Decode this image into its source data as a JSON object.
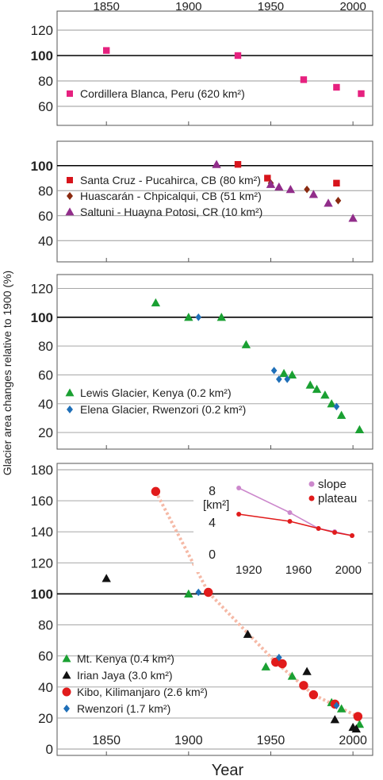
{
  "chart_data": {
    "type": "scatter",
    "xlabel": "Year",
    "ylabel": "Glacier area changes relative to 1900 (%)",
    "x_ticks": [
      "1850",
      "1900",
      "1950",
      "2000"
    ],
    "xlim": [
      1820,
      2012
    ],
    "panels": [
      {
        "ylim": [
          50,
          125
        ],
        "yticks": [
          "60",
          "80",
          "100",
          "120"
        ],
        "series": [
          {
            "name": "Cordillera Blanca, Peru (620 km²)",
            "marker": "square",
            "color": "#e6217f",
            "points": [
              [
                1850,
                104
              ],
              [
                1930,
                100
              ],
              [
                1970,
                81
              ],
              [
                1990,
                75
              ],
              [
                2005,
                70
              ]
            ]
          }
        ]
      },
      {
        "ylim": [
          30,
          110
        ],
        "yticks": [
          "40",
          "60",
          "80",
          "100"
        ],
        "series": [
          {
            "name": "Santa Cruz - Pucahirca, CB (80 km²)",
            "marker": "square",
            "color": "#d7141b",
            "points": [
              [
                1930,
                101
              ],
              [
                1948,
                90
              ],
              [
                1990,
                86
              ]
            ]
          },
          {
            "name": "Huascarán - Chpicalqui, CB (51 km²)",
            "marker": "diamond",
            "color": "#8a2a10",
            "points": [
              [
                1950,
                86
              ],
              [
                1972,
                81
              ],
              [
                1991,
                72
              ]
            ]
          },
          {
            "name": "Saltuni - Huayna Potosi, CR (10 km²)",
            "marker": "triangle",
            "color": "#912d8a",
            "points": [
              [
                1917,
                101
              ],
              [
                1950,
                85
              ],
              [
                1955,
                83
              ],
              [
                1962,
                81
              ],
              [
                1976,
                77
              ],
              [
                1985,
                70
              ],
              [
                2000,
                58
              ]
            ]
          }
        ]
      },
      {
        "ylim": [
          14,
          123
        ],
        "yticks": [
          "20",
          "40",
          "60",
          "80",
          "100",
          "120"
        ],
        "series": [
          {
            "name": "Lewis Glacier, Kenya (0.2 km²)",
            "marker": "triangle",
            "color": "#1aa032",
            "points": [
              [
                1880,
                110
              ],
              [
                1900,
                100
              ],
              [
                1920,
                100
              ],
              [
                1935,
                81
              ],
              [
                1958,
                61
              ],
              [
                1963,
                60
              ],
              [
                1974,
                53
              ],
              [
                1978,
                50
              ],
              [
                1983,
                46
              ],
              [
                1987,
                40
              ],
              [
                1993,
                32
              ],
              [
                2004,
                22
              ]
            ]
          },
          {
            "name": "Elena Glacier, Rwenzori (0.2 km²)",
            "marker": "diamond",
            "color": "#1f6fb8",
            "points": [
              [
                1906,
                100
              ],
              [
                1952,
                63
              ],
              [
                1955,
                57
              ],
              [
                1960,
                57
              ],
              [
                1990,
                38
              ]
            ]
          }
        ]
      },
      {
        "ylim": [
          0,
          180
        ],
        "yticks": [
          "0",
          "20",
          "40",
          "60",
          "80",
          "100",
          "120",
          "140",
          "160",
          "180"
        ],
        "series": [
          {
            "name": "Mt. Kenya (0.4 km²)",
            "marker": "triangle",
            "color": "#1aa032",
            "points": [
              [
                1900,
                100
              ],
              [
                1947,
                53
              ],
              [
                1963,
                47
              ],
              [
                1987,
                30
              ],
              [
                1993,
                26
              ],
              [
                2004,
                16
              ]
            ]
          },
          {
            "name": "Irian Jaya (3.0 km²)",
            "marker": "triangle",
            "color": "#111111",
            "points": [
              [
                1850,
                110
              ],
              [
                1936,
                74
              ],
              [
                1972,
                50
              ],
              [
                1989,
                19
              ],
              [
                2000,
                14
              ],
              [
                2002,
                13
              ]
            ]
          },
          {
            "name": "Kibo, Kilimanjaro (2.6 km²)",
            "marker": "circle",
            "color": "#e11b1b",
            "points": [
              [
                1880,
                166
              ],
              [
                1912,
                101
              ],
              [
                1953,
                56
              ],
              [
                1957,
                55
              ],
              [
                1970,
                41
              ],
              [
                1976,
                35
              ],
              [
                1989,
                29
              ],
              [
                2003,
                21
              ]
            ]
          },
          {
            "name": "Rwenzori (1.7 km²)",
            "marker": "diamond",
            "color": "#1f6fb8",
            "points": [
              [
                1906,
                101
              ],
              [
                1955,
                59
              ],
              [
                1990,
                28
              ]
            ]
          }
        ],
        "dotted_trend": [
          [
            1880,
            166
          ],
          [
            1912,
            101
          ],
          [
            1953,
            56
          ],
          [
            1976,
            35
          ],
          [
            2003,
            21
          ]
        ],
        "inset": {
          "ylabel": "[km²]",
          "y_ticks": [
            "0",
            "4",
            "8"
          ],
          "x_ticks": [
            "1920",
            "1960",
            "2000"
          ],
          "xlim": [
            1910,
            2010
          ],
          "ylim": [
            0,
            9
          ],
          "series": [
            {
              "name": "slope",
              "color": "#cc88cc",
              "points": [
                [
                  1912,
                  8.3
                ],
                [
                  1953,
                  5.2
                ],
                [
                  1976,
                  3.2
                ],
                [
                  1989,
                  2.8
                ],
                [
                  2003,
                  2.3
                ]
              ]
            },
            {
              "name": "plateau",
              "color": "#e11b1b",
              "points": [
                [
                  1912,
                  5.0
                ],
                [
                  1953,
                  4.1
                ],
                [
                  1976,
                  3.2
                ],
                [
                  1989,
                  2.7
                ],
                [
                  2003,
                  2.3
                ]
              ]
            }
          ]
        }
      }
    ]
  }
}
